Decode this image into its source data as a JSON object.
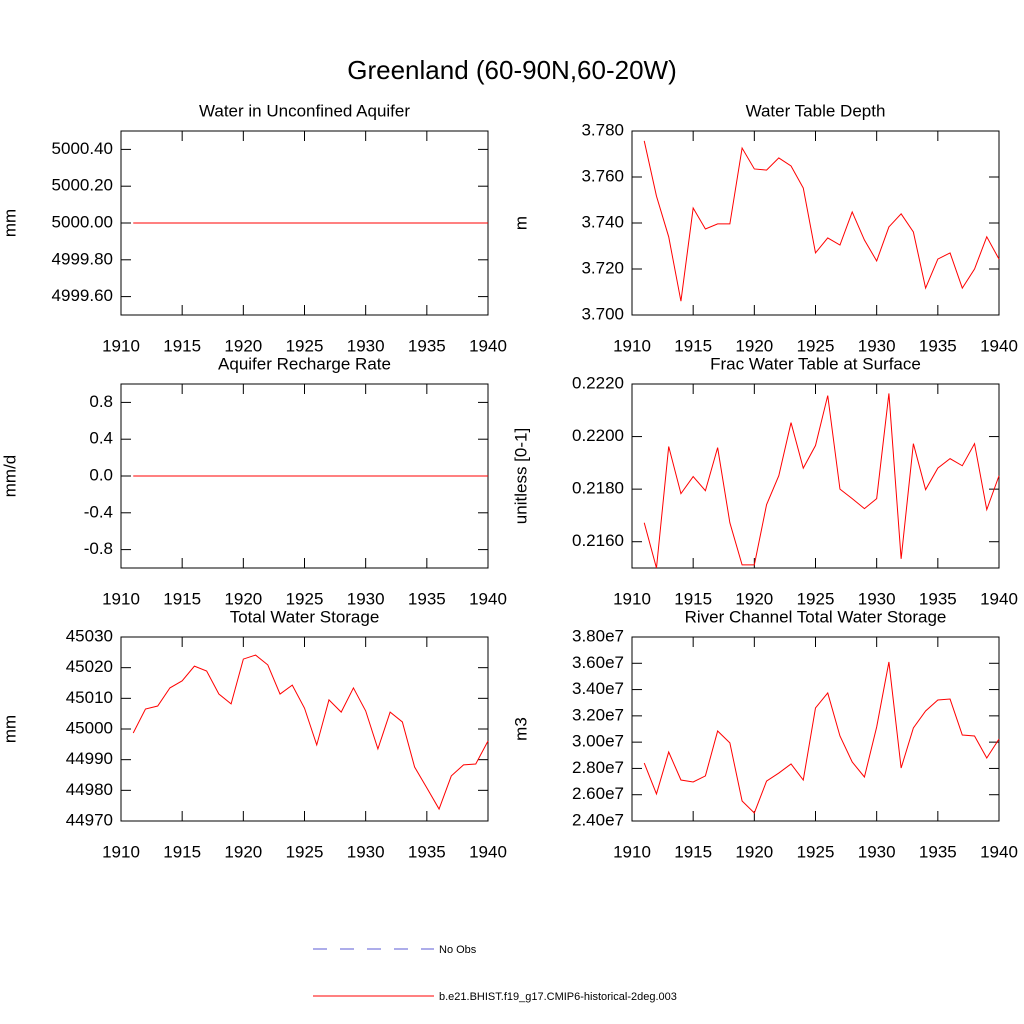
{
  "title": "Greenland (60-90N,60-20W)",
  "legend": [
    {
      "name": "No Obs",
      "color": "#5b5bd6",
      "dashed": true
    },
    {
      "name": "b.e21.BHIST.f19_g17.CMIP6-historical-2deg.003",
      "color": "#ff0000",
      "dashed": false
    }
  ],
  "chart_data": [
    {
      "type": "line",
      "title": "Water in Unconfined Aquifer",
      "ylabel": "mm",
      "x": [
        1911,
        1912,
        1913,
        1914,
        1915,
        1916,
        1917,
        1918,
        1919,
        1920,
        1921,
        1922,
        1923,
        1924,
        1925,
        1926,
        1927,
        1928,
        1929,
        1930,
        1931,
        1932,
        1933,
        1934,
        1935,
        1936,
        1937,
        1938,
        1939,
        1940
      ],
      "series": [
        {
          "color": "#ff0000",
          "values": [
            5000,
            5000,
            5000,
            5000,
            5000,
            5000,
            5000,
            5000,
            5000,
            5000,
            5000,
            5000,
            5000,
            5000,
            5000,
            5000,
            5000,
            5000,
            5000,
            5000,
            5000,
            5000,
            5000,
            5000,
            5000,
            5000,
            5000,
            5000,
            5000,
            5000
          ]
        }
      ],
      "xlim": [
        1910,
        1940
      ],
      "xticks": [
        1910,
        1915,
        1920,
        1925,
        1930,
        1935,
        1940
      ],
      "ylim": [
        4999.5,
        5000.5
      ],
      "yticks": [
        {
          "value": 4999.6,
          "label": "4999.60"
        },
        {
          "value": 4999.8,
          "label": "4999.80"
        },
        {
          "value": 5000,
          "label": "5000.00"
        },
        {
          "value": 5000.2,
          "label": "5000.20"
        },
        {
          "value": 5000.4,
          "label": "5000.40"
        }
      ]
    },
    {
      "type": "line",
      "title": "Water Table Depth",
      "ylabel": "m",
      "x": [
        1911,
        1912,
        1913,
        1914,
        1915,
        1916,
        1917,
        1918,
        1919,
        1920,
        1921,
        1922,
        1923,
        1924,
        1925,
        1926,
        1927,
        1928,
        1929,
        1930,
        1931,
        1932,
        1933,
        1934,
        1935,
        1936,
        1937,
        1938,
        1939,
        1940
      ],
      "series": [
        {
          "color": "#ff0000",
          "values": [
            3.7757,
            3.7517,
            3.734,
            3.706,
            3.7465,
            3.7374,
            3.7396,
            3.7396,
            3.7726,
            3.7635,
            3.763,
            3.7683,
            3.7648,
            3.7552,
            3.727,
            3.7335,
            3.7304,
            3.7448,
            3.7326,
            3.7235,
            3.7383,
            3.744,
            3.7361,
            3.7117,
            3.7243,
            3.727,
            3.7117,
            3.72,
            3.734,
            3.7243
          ]
        }
      ],
      "xlim": [
        1910,
        1940
      ],
      "xticks": [
        1910,
        1915,
        1920,
        1925,
        1930,
        1935,
        1940
      ],
      "ylim": [
        3.7,
        3.78
      ],
      "yticks": [
        {
          "value": 3.7,
          "label": "3.700"
        },
        {
          "value": 3.72,
          "label": "3.720"
        },
        {
          "value": 3.74,
          "label": "3.740"
        },
        {
          "value": 3.76,
          "label": "3.760"
        },
        {
          "value": 3.78,
          "label": "3.780"
        }
      ]
    },
    {
      "type": "line",
      "title": "Aquifer Recharge Rate",
      "ylabel": "mm/d",
      "x": [
        1911,
        1912,
        1913,
        1914,
        1915,
        1916,
        1917,
        1918,
        1919,
        1920,
        1921,
        1922,
        1923,
        1924,
        1925,
        1926,
        1927,
        1928,
        1929,
        1930,
        1931,
        1932,
        1933,
        1934,
        1935,
        1936,
        1937,
        1938,
        1939,
        1940
      ],
      "series": [
        {
          "color": "#ff0000",
          "values": [
            0,
            0,
            0,
            0,
            0,
            0,
            0,
            0,
            0,
            0,
            0,
            0,
            0,
            0,
            0,
            0,
            0,
            0,
            0,
            0,
            0,
            0,
            0,
            0,
            0,
            0,
            0,
            0,
            0,
            0
          ]
        }
      ],
      "xlim": [
        1910,
        1940
      ],
      "xticks": [
        1910,
        1915,
        1920,
        1925,
        1930,
        1935,
        1940
      ],
      "ylim": [
        -1,
        1
      ],
      "yticks": [
        -0.8,
        -0.4,
        {
          "value": 0,
          "label": "0.0"
        },
        0.4,
        0.8
      ]
    },
    {
      "type": "line",
      "title": "Frac Water Table at Surface",
      "ylabel": "unitless [0-1]",
      "x": [
        1911,
        1912,
        1913,
        1914,
        1915,
        1916,
        1917,
        1918,
        1919,
        1920,
        1921,
        1922,
        1923,
        1924,
        1925,
        1926,
        1927,
        1928,
        1929,
        1930,
        1931,
        1932,
        1933,
        1934,
        1935,
        1936,
        1937,
        1938,
        1939,
        1940
      ],
      "series": [
        {
          "color": "#ff0000",
          "values": [
            0.21672,
            0.215,
            0.21962,
            0.21783,
            0.21848,
            0.21794,
            0.21958,
            0.21672,
            0.21512,
            0.21512,
            0.21741,
            0.21851,
            0.22053,
            0.2188,
            0.21966,
            0.22156,
            0.218,
            0.21764,
            0.21726,
            0.21764,
            0.22164,
            0.21535,
            0.21973,
            0.21798,
            0.2188,
            0.21916,
            0.21889,
            0.21973,
            0.21722,
            0.21851
          ]
        }
      ],
      "xlim": [
        1910,
        1940
      ],
      "xticks": [
        1910,
        1915,
        1920,
        1925,
        1930,
        1935,
        1940
      ],
      "ylim": [
        0.215,
        0.222
      ],
      "yticks": [
        {
          "value": 0.216,
          "label": "0.2160"
        },
        {
          "value": 0.218,
          "label": "0.2180"
        },
        {
          "value": 0.22,
          "label": "0.2200"
        },
        {
          "value": 0.222,
          "label": "0.2220"
        }
      ]
    },
    {
      "type": "line",
      "title": "Total Water Storage",
      "ylabel": "mm",
      "x": [
        1911,
        1912,
        1913,
        1914,
        1915,
        1916,
        1917,
        1918,
        1919,
        1920,
        1921,
        1922,
        1923,
        1924,
        1925,
        1926,
        1927,
        1928,
        1929,
        1930,
        1931,
        1932,
        1933,
        1934,
        1935,
        1936,
        1937,
        1938,
        1939,
        1940
      ],
      "series": [
        {
          "color": "#ff0000",
          "values": [
            44998.7,
            45006.5,
            45007.5,
            45013.4,
            45015.7,
            45020.5,
            45018.9,
            45011.4,
            45008.2,
            45022.8,
            45024.1,
            45020.9,
            45011.4,
            45014.3,
            45006.8,
            44994.8,
            45009.5,
            45005.5,
            45013.4,
            45005.9,
            44993.5,
            45005.5,
            45002.3,
            44987.6,
            44980.8,
            44973.9,
            44984.7,
            44988.3,
            44988.6,
            44996.1
          ]
        }
      ],
      "xlim": [
        1910,
        1940
      ],
      "xticks": [
        1910,
        1915,
        1920,
        1925,
        1930,
        1935,
        1940
      ],
      "ylim": [
        44970,
        45030
      ],
      "yticks": [
        44970,
        44980,
        44990,
        45000,
        45010,
        45020,
        45030
      ]
    },
    {
      "type": "line",
      "title": "River Channel Total Water Storage",
      "ylabel": "m3",
      "x": [
        1911,
        1912,
        1913,
        1914,
        1915,
        1916,
        1917,
        1918,
        1919,
        1920,
        1921,
        1922,
        1923,
        1924,
        1925,
        1926,
        1927,
        1928,
        1929,
        1930,
        1931,
        1932,
        1933,
        1934,
        1935,
        1936,
        1937,
        1938,
        1939,
        1940
      ],
      "series": [
        {
          "color": "#ff0000",
          "values": [
            28410000,
            26060000,
            29250000,
            27120000,
            26970000,
            27430000,
            30850000,
            29940000,
            25520000,
            24610000,
            27040000,
            27650000,
            28340000,
            27120000,
            32600000,
            33740000,
            30470000,
            28490000,
            27350000,
            31150000,
            36100000,
            28030000,
            31080000,
            32370000,
            33210000,
            33280000,
            30540000,
            30470000,
            28790000,
            30240000
          ]
        }
      ],
      "xlim": [
        1910,
        1940
      ],
      "xticks": [
        1910,
        1915,
        1920,
        1925,
        1930,
        1935,
        1940
      ],
      "ylim": [
        24000000,
        38000000
      ],
      "yticks": [
        {
          "value": 24000000,
          "label": "2.40e7"
        },
        {
          "value": 26000000,
          "label": "2.60e7"
        },
        {
          "value": 28000000,
          "label": "2.80e7"
        },
        {
          "value": 30000000,
          "label": "3.00e7"
        },
        {
          "value": 32000000,
          "label": "3.20e7"
        },
        {
          "value": 34000000,
          "label": "3.40e7"
        },
        {
          "value": 36000000,
          "label": "3.60e7"
        },
        {
          "value": 38000000,
          "label": "3.80e7"
        }
      ]
    }
  ]
}
